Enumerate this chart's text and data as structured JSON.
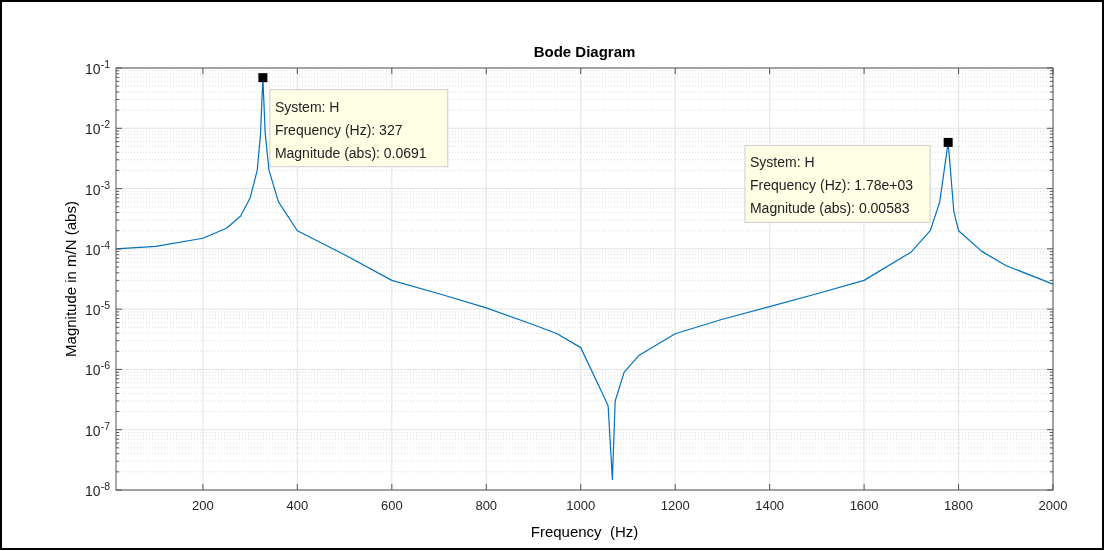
{
  "chart_data": {
    "type": "line",
    "title": "Bode Diagram",
    "xlabel": "Frequency  (Hz)",
    "ylabel": "Magnitude in m/N (abs)",
    "log": "y",
    "grid": true,
    "xlim": [
      16,
      2000
    ],
    "xticks": [
      200,
      400,
      600,
      800,
      1000,
      1200,
      1400,
      1600,
      1800,
      2000
    ],
    "ylim": [
      1e-08,
      0.1
    ],
    "yticks": [
      {
        "value": 1e-08,
        "label": "10$^{-8}$"
      },
      {
        "value": 1e-07,
        "label": "10$^{-7}$"
      },
      {
        "value": 1e-06,
        "label": "10$^{-6}$"
      },
      {
        "value": 1e-05,
        "label": "10$^{-5}$"
      },
      {
        "value": 0.0001,
        "label": "10$^{-4}$"
      },
      {
        "value": 0.001,
        "label": "10$^{-3}$"
      },
      {
        "value": 0.01,
        "label": "10$^{-2}$"
      },
      {
        "value": 0.1,
        "label": "10$^{-1}$"
      }
    ],
    "marker": "none",
    "line_style": "solid",
    "series": [
      {
        "color": "#0072bd",
        "x": [
          16,
          100,
          200,
          250,
          280,
          300,
          315,
          322,
          327,
          332,
          340,
          360,
          400,
          500,
          600,
          700,
          800,
          900,
          950,
          1000,
          1040,
          1058,
          1067,
          1073,
          1092,
          1123,
          1200,
          1300,
          1400,
          1500,
          1600,
          1700,
          1740,
          1760,
          1778,
          1790,
          1800,
          1850,
          1900,
          2000
        ],
        "values": [
          0.0001,
          0.00011,
          0.00015,
          0.00022,
          0.00035,
          0.0007,
          0.002,
          0.008,
          0.0691,
          0.008,
          0.002,
          0.0006,
          0.0002,
          8e-05,
          3e-05,
          1.8e-05,
          1.05e-05,
          5.5e-06,
          3.9e-06,
          2.3e-06,
          5e-07,
          2.5e-07,
          1.5e-08,
          3e-07,
          9e-07,
          1.7e-06,
          3.9e-06,
          6.8e-06,
          1.1e-05,
          1.8e-05,
          3e-05,
          8.9e-05,
          0.0002,
          0.00059,
          0.00583,
          0.00042,
          0.0002,
          9e-05,
          5.3e-05,
          2.6e-05
        ]
      }
    ],
    "annotations": [
      {
        "text": "System: H\nFrequency (Hz): 327\nMagnitude (abs): 0.0691",
        "x": 327,
        "y": 0.0691
      },
      {
        "text": "System: H\nFrequency (Hz): 1.78e+03\nMagnitude (abs): 0.00583",
        "x": 1778,
        "y": 0.00583
      }
    ]
  }
}
